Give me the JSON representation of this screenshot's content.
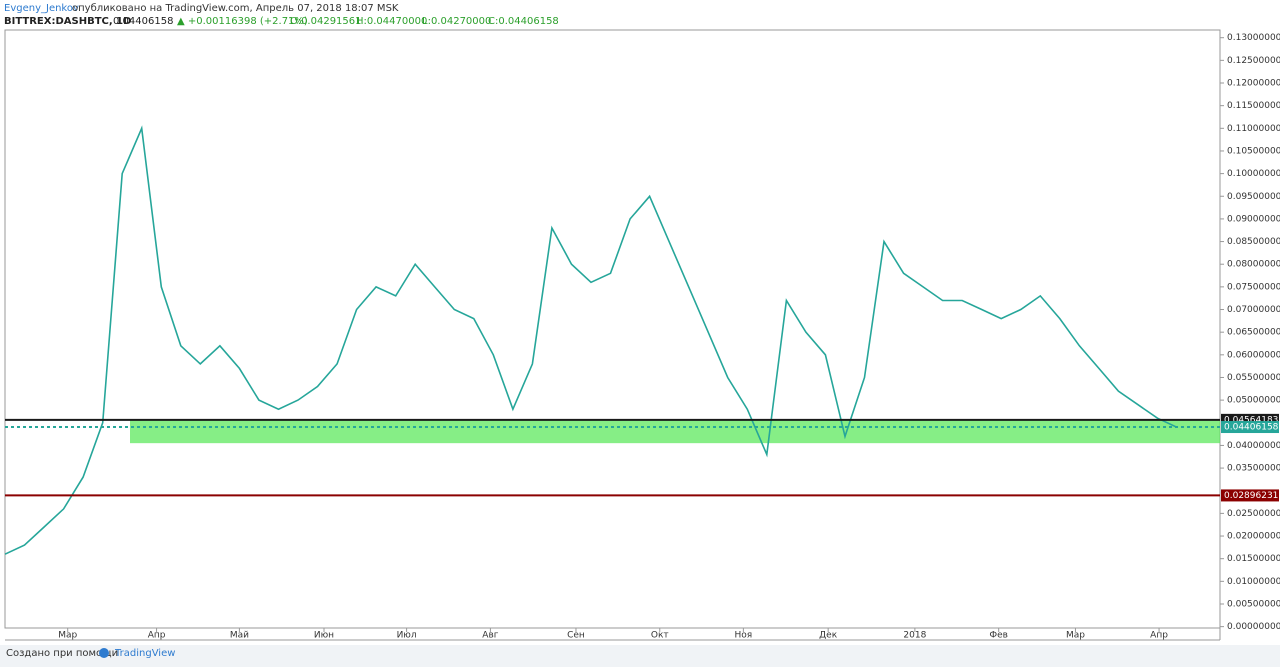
{
  "header": {
    "author": "Evgeny_Jenkov",
    "published": "опубликовано на TradingView.com, Апрель 07, 2018 18:07 MSK",
    "symbol": "BITTREX:DASHBTC, 1D",
    "last": "0.04406158",
    "change": "▲ +0.00116398 (+2.71%)",
    "open": "O:0.04291561",
    "high": "H:0.04470000",
    "low": "L:0.04270000",
    "close": "C:0.04406158"
  },
  "chart_data": {
    "type": "line",
    "series": [
      {
        "name": "DASHBTC",
        "color": "#26a69a",
        "x": [
          0,
          1,
          2,
          3,
          4,
          5,
          6,
          7,
          8,
          9,
          10,
          11,
          12,
          13,
          14,
          15,
          16,
          17,
          18,
          19,
          20,
          21,
          22,
          23,
          24,
          25,
          26,
          27,
          28,
          29,
          30,
          31,
          32,
          33,
          34,
          35,
          36,
          37,
          38,
          39,
          40,
          41,
          42,
          43,
          44,
          45,
          46,
          47,
          48,
          49,
          50,
          51,
          52,
          53,
          54,
          55,
          56,
          57,
          58,
          59,
          60
        ],
        "values": [
          0.016,
          0.018,
          0.022,
          0.026,
          0.033,
          0.045,
          0.1,
          0.11,
          0.075,
          0.062,
          0.058,
          0.062,
          0.057,
          0.05,
          0.048,
          0.05,
          0.053,
          0.058,
          0.07,
          0.075,
          0.073,
          0.08,
          0.075,
          0.07,
          0.068,
          0.06,
          0.048,
          0.058,
          0.088,
          0.08,
          0.076,
          0.078,
          0.09,
          0.095,
          0.085,
          0.075,
          0.065,
          0.055,
          0.048,
          0.038,
          0.072,
          0.065,
          0.06,
          0.042,
          0.055,
          0.085,
          0.078,
          0.075,
          0.072,
          0.072,
          0.07,
          0.068,
          0.07,
          0.073,
          0.068,
          0.062,
          0.057,
          0.052,
          0.049,
          0.046,
          0.044
        ]
      }
    ],
    "xlim": [
      0,
      62.2
    ],
    "xticks": [
      {
        "value": 3.21,
        "label": "Мар"
      },
      {
        "value": 7.76,
        "label": "Апр"
      },
      {
        "value": 12.0,
        "label": "Май"
      },
      {
        "value": 16.33,
        "label": "Июн"
      },
      {
        "value": 20.56,
        "label": "Июл"
      },
      {
        "value": 24.85,
        "label": "Авг"
      },
      {
        "value": 29.23,
        "label": "Сен"
      },
      {
        "value": 33.52,
        "label": "Окт"
      },
      {
        "value": 37.8,
        "label": "Ноя"
      },
      {
        "value": 42.14,
        "label": "Дек"
      },
      {
        "value": 46.58,
        "label": "2018"
      },
      {
        "value": 50.87,
        "label": "Фев"
      },
      {
        "value": 54.8,
        "label": "Мар"
      },
      {
        "value": 59.08,
        "label": "Апр"
      }
    ],
    "ylim": [
      -0.0003,
      0.1317
    ],
    "yticks": [
      {
        "value": 0,
        "label": "0.00000000"
      },
      {
        "value": 0.005,
        "label": "0.00500000"
      },
      {
        "value": 0.01,
        "label": "0.01000000"
      },
      {
        "value": 0.015,
        "label": "0.01500000"
      },
      {
        "value": 0.02,
        "label": "0.02000000"
      },
      {
        "value": 0.025,
        "label": "0.02500000"
      },
      {
        "value": 0.035,
        "label": "0.03500000"
      },
      {
        "value": 0.04,
        "label": "0.04000000"
      },
      {
        "value": 0.05,
        "label": "0.05000000"
      },
      {
        "value": 0.055,
        "label": "0.05500000"
      },
      {
        "value": 0.06,
        "label": "0.06000000"
      },
      {
        "value": 0.065,
        "label": "0.06500000"
      },
      {
        "value": 0.07,
        "label": "0.07000000"
      },
      {
        "value": 0.075,
        "label": "0.07500000"
      },
      {
        "value": 0.08,
        "label": "0.08000000"
      },
      {
        "value": 0.085,
        "label": "0.08500000"
      },
      {
        "value": 0.09,
        "label": "0.09000000"
      },
      {
        "value": 0.095,
        "label": "0.09500000"
      },
      {
        "value": 0.1,
        "label": "0.10000000"
      },
      {
        "value": 0.105,
        "label": "0.10500000"
      },
      {
        "value": 0.11,
        "label": "0.11000000"
      },
      {
        "value": 0.115,
        "label": "0.11500000"
      },
      {
        "value": 0.12,
        "label": "0.12000000"
      },
      {
        "value": 0.125,
        "label": "0.12500000"
      },
      {
        "value": 0.13,
        "label": "0.13000000"
      }
    ],
    "price_lines": [
      {
        "value": 0.04564183,
        "color": "#1a1a1a"
      },
      {
        "value": 0.04406158,
        "color": "#26a69a"
      },
      {
        "value": 0.02896231,
        "color": "#8b0000"
      }
    ],
    "zone": {
      "from": 0.0405,
      "to": 0.0458,
      "color": "#5ee85e"
    },
    "grid": false
  },
  "footer": {
    "made_with": "Создано при помощи",
    "brand": "TradingView"
  }
}
